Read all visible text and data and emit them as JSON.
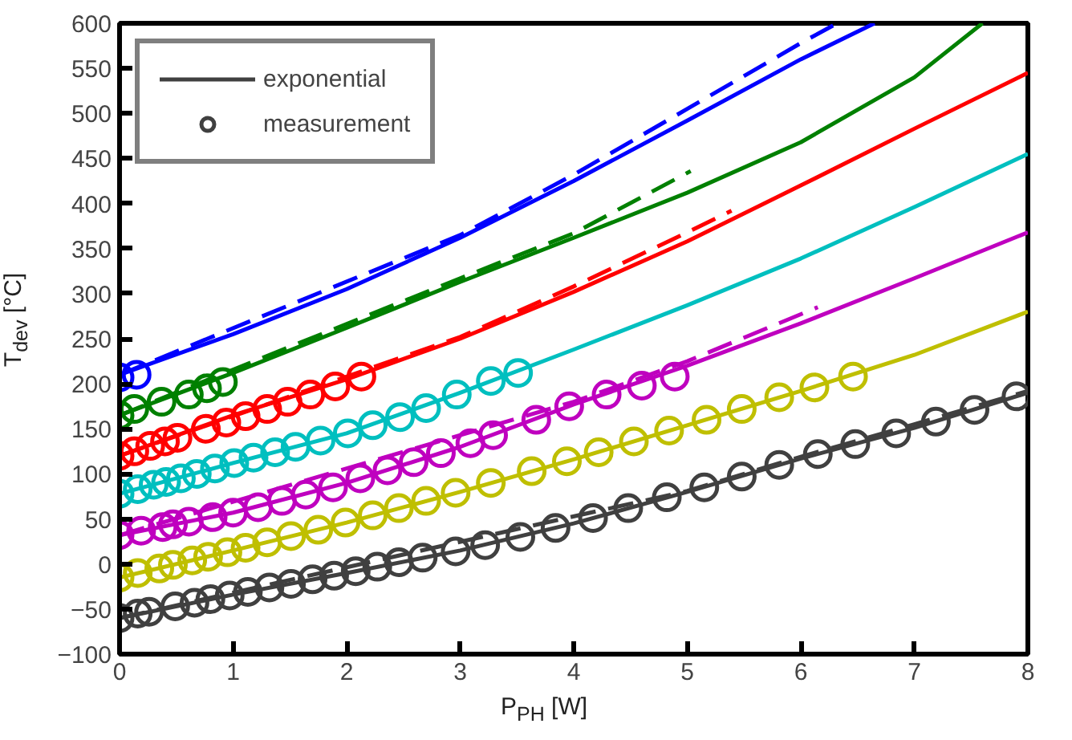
{
  "chart_data": {
    "type": "line",
    "xlabel": "P$_{PH}$ [W]",
    "ylabel": "T$_{dev}$ [°C]",
    "xlim": [
      0,
      8
    ],
    "ylim": [
      -100,
      600
    ],
    "xticks": [
      0,
      1,
      2,
      3,
      4,
      5,
      6,
      7,
      8
    ],
    "yticks": [
      -100,
      -50,
      0,
      50,
      100,
      150,
      200,
      250,
      300,
      350,
      400,
      450,
      500,
      550,
      600
    ],
    "grid": false,
    "legend": "top left",
    "series": [
      {
        "type": "line",
        "line_style": "solid",
        "color": "#0000ff",
        "x": [
          0,
          1,
          2,
          3,
          4,
          5,
          6,
          6.65
        ],
        "values": [
          210,
          255,
          305,
          362,
          425,
          492,
          560,
          600
        ]
      },
      {
        "type": "line",
        "line_style": "dashed",
        "color": "#0000ff",
        "x": [
          0,
          3,
          4,
          5,
          6,
          6.32
        ],
        "values": [
          210,
          365,
          432,
          505,
          578,
          600
        ]
      },
      {
        "type": "scatter",
        "marker": "circle",
        "color": "#0000ff",
        "x": [
          0,
          0.15
        ],
        "values": [
          207,
          210
        ]
      },
      {
        "type": "line",
        "line_style": "solid",
        "color": "#008000",
        "x": [
          0,
          1,
          2,
          3,
          4,
          5,
          6,
          7,
          7.6
        ],
        "values": [
          165,
          212,
          262,
          313,
          362,
          412,
          468,
          540,
          600
        ]
      },
      {
        "type": "line",
        "line_style": "dashed",
        "color": "#008000",
        "x": [
          0,
          3,
          4,
          5.03
        ],
        "values": [
          165,
          317,
          367,
          436
        ]
      },
      {
        "type": "scatter",
        "marker": "circle",
        "color": "#008000",
        "x": [
          0,
          0.13,
          0.37,
          0.61,
          0.77,
          0.91
        ],
        "values": [
          165,
          172,
          180,
          188,
          195,
          202
        ]
      },
      {
        "type": "line",
        "line_style": "solid",
        "color": "#ff0000",
        "x": [
          0,
          1,
          2,
          3,
          4,
          5,
          6,
          7,
          8
        ],
        "values": [
          120,
          165,
          205,
          250,
          302,
          358,
          420,
          483,
          545
        ]
      },
      {
        "type": "line",
        "line_style": "dashed",
        "color": "#ff0000",
        "x": [
          0,
          3,
          4,
          5,
          5.39
        ],
        "values": [
          120,
          252,
          308,
          368,
          392
        ]
      },
      {
        "type": "scatter",
        "marker": "circle",
        "color": "#ff0000",
        "x": [
          0,
          0.13,
          0.27,
          0.4,
          0.51,
          0.76,
          0.94,
          1.11,
          1.3,
          1.48,
          1.68,
          1.9,
          2.13
        ],
        "values": [
          120,
          125,
          131,
          136,
          140,
          150,
          157,
          164,
          172,
          180,
          188,
          197,
          208
        ]
      },
      {
        "type": "line",
        "line_style": "solid",
        "color": "#00bfbf",
        "x": [
          0,
          1,
          2,
          3,
          4,
          5,
          6,
          7,
          8
        ],
        "values": [
          78,
          112,
          145,
          190,
          238,
          287,
          339,
          396,
          455
        ]
      },
      {
        "type": "scatter",
        "marker": "circle",
        "color": "#00bfbf",
        "x": [
          0,
          0.16,
          0.3,
          0.41,
          0.54,
          0.68,
          0.84,
          1.01,
          1.18,
          1.37,
          1.55,
          1.77,
          2.01,
          2.23,
          2.47,
          2.7,
          2.97,
          3.27,
          3.51
        ],
        "values": [
          78,
          83,
          88,
          91,
          95,
          100,
          106,
          112,
          118,
          124,
          130,
          137,
          145,
          154,
          163,
          173,
          188,
          203,
          212
        ]
      },
      {
        "type": "line",
        "line_style": "solid",
        "color": "#bf00bf",
        "x": [
          0,
          1,
          2,
          3,
          4,
          5,
          6,
          7,
          8
        ],
        "values": [
          32,
          57,
          90,
          130,
          177,
          220,
          267,
          317,
          368
        ]
      },
      {
        "type": "line",
        "line_style": "dashed",
        "color": "#bf00bf",
        "x": [
          0,
          4,
          5,
          6.15
        ],
        "values": [
          32,
          180,
          225,
          285
        ]
      },
      {
        "type": "scatter",
        "marker": "circle",
        "color": "#bf00bf",
        "x": [
          0,
          0.19,
          0.38,
          0.47,
          0.61,
          0.82,
          1,
          1.22,
          1.43,
          1.64,
          1.88,
          2.12,
          2.36,
          2.59,
          2.83,
          3.09,
          3.29,
          3.67,
          3.96,
          4.29,
          4.6,
          4.89
        ],
        "values": [
          32,
          37,
          41,
          44,
          47,
          52,
          57,
          63,
          70,
          77,
          85,
          95,
          104,
          113,
          123,
          134,
          143,
          160,
          175,
          188,
          198,
          208
        ]
      },
      {
        "type": "line",
        "line_style": "solid",
        "color": "#bfbf00",
        "x": [
          0,
          1,
          2,
          3,
          4,
          5,
          6,
          7,
          8
        ],
        "values": [
          -15,
          15,
          46,
          80,
          116,
          154,
          192,
          232,
          280
        ]
      },
      {
        "type": "scatter",
        "marker": "circle",
        "color": "#bfbf00",
        "x": [
          0,
          0.16,
          0.35,
          0.47,
          0.64,
          0.78,
          0.95,
          1.11,
          1.3,
          1.51,
          1.75,
          1.99,
          2.23,
          2.46,
          2.7,
          2.96,
          3.27,
          3.63,
          3.94,
          4.22,
          4.53,
          4.84,
          5.17,
          5.48,
          5.81,
          6.12,
          6.46
        ],
        "values": [
          -15,
          -10,
          -5,
          -1,
          4,
          8,
          13,
          18,
          24,
          31,
          38,
          46,
          54,
          62,
          70,
          79,
          90,
          103,
          114,
          124,
          136,
          148,
          160,
          172,
          185,
          196,
          208
        ]
      },
      {
        "type": "line",
        "line_style": "solid",
        "name": "exponential",
        "color": "#404040",
        "x": [
          0,
          1,
          2,
          3,
          4,
          5,
          6,
          7,
          8
        ],
        "values": [
          -60,
          -34,
          -10,
          15,
          45,
          80,
          117,
          151,
          190
        ]
      },
      {
        "type": "line",
        "line_style": "dashed",
        "color": "#404040",
        "x": [
          0,
          5,
          6,
          7,
          8
        ],
        "values": [
          -60,
          81,
          119,
          155,
          192
        ]
      },
      {
        "type": "scatter",
        "marker": "circle",
        "name": "measurement",
        "color": "#404040",
        "x": [
          0,
          0.16,
          0.26,
          0.49,
          0.66,
          0.8,
          0.97,
          1.13,
          1.32,
          1.51,
          1.7,
          1.89,
          2.08,
          2.27,
          2.46,
          2.67,
          2.96,
          3.22,
          3.53,
          3.84,
          4.17,
          4.48,
          4.82,
          5.15,
          5.48,
          5.81,
          6.15,
          6.48,
          6.84,
          7.19,
          7.53,
          7.9
        ],
        "values": [
          -60,
          -55,
          -53,
          -47,
          -43,
          -39,
          -35,
          -31,
          -26,
          -22,
          -17,
          -13,
          -8,
          -3,
          2,
          7,
          14,
          21,
          30,
          40,
          51,
          62,
          74,
          85,
          97,
          110,
          122,
          133,
          145,
          158,
          171,
          186
        ]
      }
    ]
  }
}
